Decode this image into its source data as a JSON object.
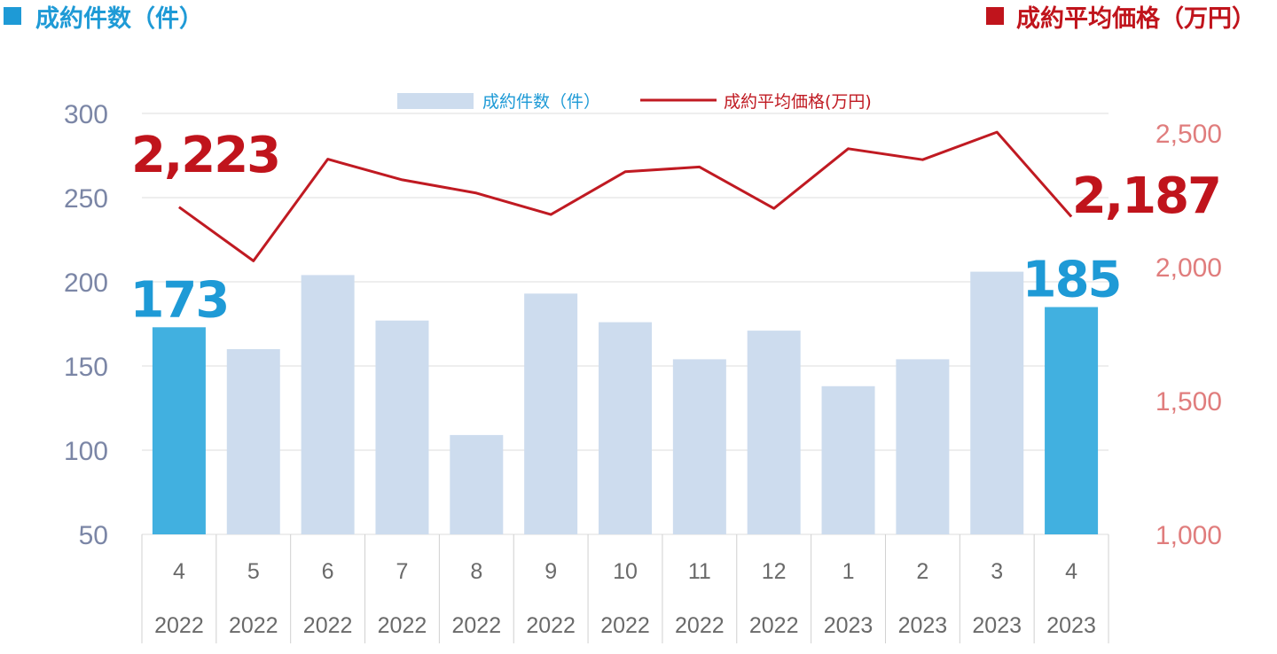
{
  "header": {
    "left_label": "成約件数（件）",
    "right_label": "成約平均価格（万円）"
  },
  "legend": {
    "bar_label": "成約件数（件）",
    "line_label": "成約平均価格(万円)"
  },
  "colors": {
    "left_accent": "#1e9ad6",
    "right_accent": "#c0141c",
    "bar_normal": "#cddcee",
    "bar_highlight": "#41b0e0",
    "line": "#c01a22",
    "left_axis_text": "#7b86a6",
    "right_axis_text": "#e07d7d",
    "grid": "#dddddd",
    "callout_blue": "#1e9ad6",
    "callout_red": "#c0141c"
  },
  "chart_data": {
    "type": "bar",
    "categories": [
      {
        "month": "4",
        "year": "2022"
      },
      {
        "month": "5",
        "year": "2022"
      },
      {
        "month": "6",
        "year": "2022"
      },
      {
        "month": "7",
        "year": "2022"
      },
      {
        "month": "8",
        "year": "2022"
      },
      {
        "month": "9",
        "year": "2022"
      },
      {
        "month": "10",
        "year": "2022"
      },
      {
        "month": "11",
        "year": "2022"
      },
      {
        "month": "12",
        "year": "2022"
      },
      {
        "month": "1",
        "year": "2023"
      },
      {
        "month": "2",
        "year": "2023"
      },
      {
        "month": "3",
        "year": "2023"
      },
      {
        "month": "4",
        "year": "2023"
      }
    ],
    "series": [
      {
        "name": "成約件数（件）",
        "type": "bar",
        "axis": "left",
        "values": [
          173,
          160,
          204,
          177,
          109,
          193,
          176,
          154,
          171,
          138,
          154,
          206,
          185
        ],
        "highlight": [
          0,
          12
        ]
      },
      {
        "name": "成約平均価格(万円)",
        "type": "line",
        "axis": "right",
        "values": [
          2223,
          2022,
          2402,
          2325,
          2275,
          2195,
          2355,
          2373,
          2218,
          2441,
          2400,
          2503,
          2187
        ]
      }
    ],
    "y_left": {
      "min": 50,
      "max": 300,
      "ticks": [
        "50",
        "100",
        "150",
        "200",
        "250",
        "300"
      ]
    },
    "y_right": {
      "min": 1000,
      "max": 2500,
      "ticks": [
        "1,000",
        "1,500",
        "2,000",
        "2,500"
      ]
    },
    "grid": true,
    "legend_position": "top-center",
    "callouts": {
      "first_bar": "173",
      "last_bar": "185",
      "first_price": "2,223",
      "last_price": "2,187"
    }
  }
}
